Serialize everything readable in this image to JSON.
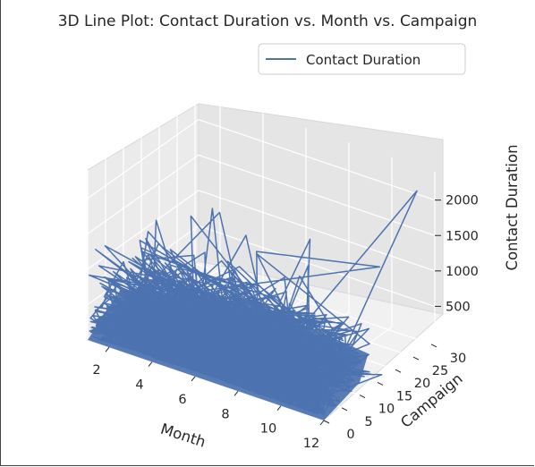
{
  "chart_data": {
    "type": "line",
    "projection": "3d",
    "title": "3D Line Plot: Contact Duration vs. Month vs. Campaign",
    "xlabel": "Month",
    "ylabel": "Campaign",
    "zlabel": "Contact Duration",
    "xlim": [
      1,
      12
    ],
    "ylim": [
      0,
      31
    ],
    "zlim": [
      0,
      2400
    ],
    "x_ticks": [
      "2",
      "4",
      "6",
      "8",
      "10",
      "12"
    ],
    "y_ticks": [
      "0",
      "5",
      "10",
      "15",
      "20",
      "25",
      "30"
    ],
    "z_ticks": [
      "500",
      "1000",
      "1500",
      "2000"
    ],
    "grid": true,
    "legend_position": "top-right",
    "series": [
      {
        "name": "Contact Duration",
        "color": "#4c72b0",
        "note_spikes": "dense zig-zag line; approx values below",
        "x": [
          1.2,
          3.0,
          4.8,
          6.7,
          8.2,
          10.2,
          11.5,
          9.7,
          12.0,
          8.8,
          5.5,
          3.9,
          2.6,
          6.2,
          8.5,
          4.3,
          2.1
        ],
        "y": [
          1,
          3,
          2,
          1,
          4,
          2,
          29,
          7,
          8,
          18,
          12,
          20,
          5,
          9,
          10,
          6,
          14
        ],
        "z": [
          180,
          1400,
          900,
          1200,
          1850,
          1000,
          2150,
          1550,
          650,
          400,
          900,
          700,
          800,
          1100,
          1300,
          600,
          300
        ]
      }
    ]
  }
}
